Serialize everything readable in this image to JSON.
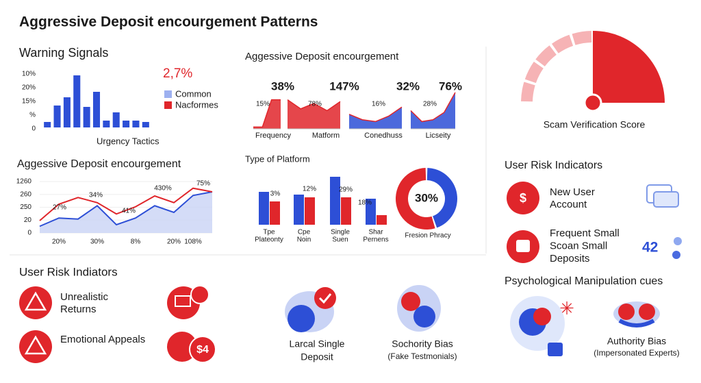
{
  "title": "Aggressive Deposit encourgement Patterns",
  "chart_data": [
    {
      "type": "bar",
      "title": "Warning Signals",
      "axis_labels": [
        "10%",
        "20%",
        "15%",
        "%",
        "0"
      ],
      "values": [
        4,
        16,
        22,
        38,
        15,
        26,
        5,
        11,
        5,
        5,
        4
      ],
      "color": "#2d4fd6",
      "ylim": [
        0,
        40
      ],
      "xlabel": "Urgency Tactics",
      "annotation": "2,7%",
      "legend": [
        {
          "name": "Common",
          "color": "#9db0f0"
        },
        {
          "name": "Nacformes",
          "color": "#e0262b"
        }
      ]
    },
    {
      "type": "area",
      "title": "Aggessive Deposit encourgement",
      "ylim": [
        0,
        100
      ],
      "panels": [
        {
          "label": "38%",
          "sublabel": "15%",
          "category": "Frequency",
          "color": "#e0262b",
          "values": [
            5,
            5,
            80,
            80
          ]
        },
        {
          "label": "147%",
          "sublabel": "78%",
          "category": "Matform",
          "color": "#e0262b",
          "values": [
            80,
            55,
            70,
            50,
            75
          ]
        },
        {
          "label": "32%",
          "sublabel": "16%",
          "category": "Conedhuss",
          "color": "#2d4fd6",
          "values": [
            40,
            25,
            20,
            35,
            60
          ]
        },
        {
          "label": "76%",
          "sublabel": "28%",
          "category": "Licseity",
          "color": "#2d4fd6",
          "values": [
            50,
            20,
            25,
            45,
            100
          ]
        }
      ]
    },
    {
      "type": "line",
      "title": "Aggessive Deposit encourgement",
      "axis_labels": [
        "1260",
        "260",
        "250",
        "20",
        "0"
      ],
      "categories": [
        null,
        "20%",
        null,
        "30%",
        null,
        "8%",
        null,
        "20%",
        "108%",
        null
      ],
      "ylim": [
        0,
        100
      ],
      "series": [
        {
          "color": "#2d4fd6",
          "fill": "#c9d3f5",
          "values": [
            13,
            29,
            27,
            53,
            16,
            29,
            53,
            40,
            73,
            80
          ]
        },
        {
          "color": "#e0262b",
          "values": [
            24,
            56,
            69,
            59,
            37,
            51,
            72,
            59,
            87,
            80
          ]
        }
      ],
      "annotations": [
        "27%",
        "34%",
        "41%",
        "430%",
        "75%"
      ]
    },
    {
      "type": "bar",
      "title": "Type of Platform",
      "categories": [
        [
          "Tpe",
          "Plateonty"
        ],
        [
          "Cpe",
          "Noin"
        ],
        [
          "Single",
          "Suen"
        ],
        [
          "Shar",
          "Pernens"
        ]
      ],
      "ylim": [
        0,
        80
      ],
      "series": [
        {
          "color": "#2d4fd6",
          "values": [
            48,
            44,
            70,
            38
          ]
        },
        {
          "color": "#e0262b",
          "values": [
            34,
            40,
            40,
            14
          ]
        }
      ],
      "annotations": [
        "3%",
        "12%",
        "29%",
        "18%"
      ]
    },
    {
      "type": "pie",
      "values": [
        45,
        55
      ],
      "colors": [
        "#2d4fd6",
        "#e0262b"
      ],
      "center_label": "30%",
      "label": "Fresion Phracy"
    },
    {
      "type": "gauge",
      "title": "Scam Verification Score",
      "value": 50,
      "lim": [
        0,
        100
      ],
      "color": "#e0262b",
      "track_color": "#f6b3b5"
    }
  ],
  "risk_indicators": {
    "title": "User Risk Indicators",
    "items": [
      [
        "New User",
        "Account"
      ],
      [
        "Frequent Small",
        "Scoan Small",
        "Deposits"
      ]
    ],
    "stat": 42
  },
  "user_risk": {
    "title": "User Risk Indiators",
    "items": [
      [
        "Unrealistic",
        "Returns"
      ],
      [
        "Emotional Appeals"
      ]
    ],
    "badge": "$4"
  },
  "biases": [
    {
      "label": [
        "Larcal Single",
        "Deposit"
      ]
    },
    {
      "label": [
        "Sochority Bias"
      ],
      "note": "(Fake Testmonials)"
    }
  ],
  "psych": {
    "title": "Psychological Manipulation cues",
    "label": "Authority Bias",
    "note": "(Impersonated Experts)"
  }
}
